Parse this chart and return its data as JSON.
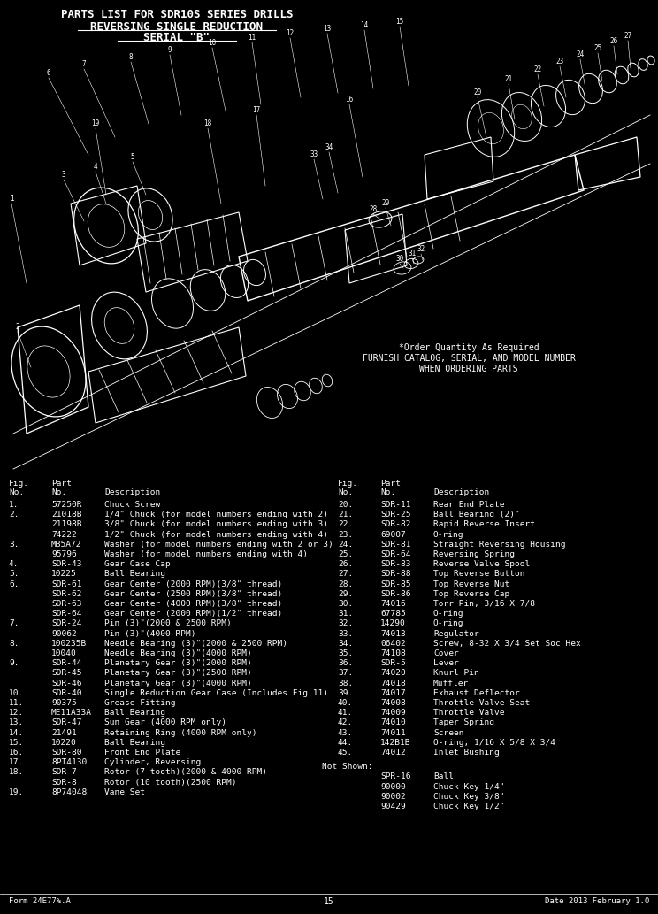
{
  "title_lines": [
    "PARTS LIST FOR SDR10S SERIES DRILLS",
    "REVERSING SINGLE REDUCTION",
    "SERIAL \"B\""
  ],
  "bg_color": "#000000",
  "text_color": "#ffffff",
  "note_lines": [
    "*Order Quantity As Required",
    "FURNISH CATALOG, SERIAL, AND MODEL NUMBER",
    "WHEN ORDERING PARTS"
  ],
  "col1_items": [
    [
      "1.",
      "57250R",
      "Chuck Screw"
    ],
    [
      "2.",
      "21018B",
      "1/4\" Chuck (for model numbers ending with 2)"
    ],
    [
      "",
      "21198B",
      "3/8\" Chuck (for model numbers ending with 3)"
    ],
    [
      "",
      "74222",
      "1/2\" Chuck (for model numbers ending with 4)"
    ],
    [
      "3.",
      "MB5A72",
      "Washer (for model numbers ending with 2 or 3)"
    ],
    [
      "",
      "95796",
      "Washer (for model numbers ending with 4)"
    ],
    [
      "4.",
      "SDR-43",
      "Gear Case Cap"
    ],
    [
      "5.",
      "10225",
      "Ball Bearing"
    ],
    [
      "6.",
      "SDR-61",
      "Gear Center (2000 RPM)(3/8\" thread)"
    ],
    [
      "",
      "SDR-62",
      "Gear Center (2500 RPM)(3/8\" thread)"
    ],
    [
      "",
      "SDR-63",
      "Gear Center (4000 RPM)(3/8\" thread)"
    ],
    [
      "",
      "SDR-64",
      "Gear Center (2000 RPM)(1/2\" thread)"
    ],
    [
      "7.",
      "SDR-24",
      "Pin (3)\"(2000 & 2500 RPM)"
    ],
    [
      "",
      "90062",
      "Pin (3)\"(4000 RPM)"
    ],
    [
      "8.",
      "100235B",
      "Needle Bearing (3)\"(2000 & 2500 RPM)"
    ],
    [
      "",
      "10040",
      "Needle Bearing (3)\"(4000 RPM)"
    ],
    [
      "9.",
      "SDR-44",
      "Planetary Gear (3)\"(2000 RPM)"
    ],
    [
      "",
      "SDR-45",
      "Planetary Gear (3)\"(2500 RPM)"
    ],
    [
      "",
      "SDR-46",
      "Planetary Gear (3)\"(4000 RPM)"
    ],
    [
      "10.",
      "SDR-40",
      "Single Reduction Gear Case (Includes Fig 11)"
    ],
    [
      "11.",
      "90375",
      "Grease Fitting"
    ],
    [
      "12.",
      "ME11A33A",
      "Ball Bearing"
    ],
    [
      "13.",
      "SDR-47",
      "Sun Gear (4000 RPM only)"
    ],
    [
      "14.",
      "21491",
      "Retaining Ring (4000 RPM only)"
    ],
    [
      "15.",
      "10220",
      "Ball Bearing"
    ],
    [
      "16.",
      "SDR-80",
      "Front End Plate"
    ],
    [
      "17.",
      "8PT4130",
      "Cylinder, Reversing"
    ],
    [
      "18.",
      "SDR-7",
      "Rotor (7 tooth)(2000 & 4000 RPM)"
    ],
    [
      "",
      "SDR-8",
      "Rotor (10 tooth)(2500 RPM)"
    ],
    [
      "19.",
      "8P74048",
      "Vane Set"
    ]
  ],
  "col2_items": [
    [
      "20.",
      "SDR-11",
      "Rear End Plate"
    ],
    [
      "21.",
      "SDR-25",
      "Ball Bearing (2)\""
    ],
    [
      "22.",
      "SDR-82",
      "Rapid Reverse Insert"
    ],
    [
      "23.",
      "69007",
      "O-ring"
    ],
    [
      "24.",
      "SDR-81",
      "Straight Reversing Housing"
    ],
    [
      "25.",
      "SDR-64",
      "Reversing Spring"
    ],
    [
      "26.",
      "SDR-83",
      "Reverse Valve Spool"
    ],
    [
      "27.",
      "SDR-88",
      "Top Reverse Button"
    ],
    [
      "28.",
      "SDR-85",
      "Top Reverse Nut"
    ],
    [
      "29.",
      "SDR-86",
      "Top Reverse Cap"
    ],
    [
      "30.",
      "74016",
      "Torr Pin, 3/16 X 7/8"
    ],
    [
      "31.",
      "67785",
      "O-ring"
    ],
    [
      "32.",
      "14290",
      "O-ring"
    ],
    [
      "33.",
      "74013",
      "Regulator"
    ],
    [
      "34.",
      "06402",
      "Screw, 8-32 X 3/4 Set Soc Hex"
    ],
    [
      "35.",
      "74108",
      "Cover"
    ],
    [
      "36.",
      "SDR-5",
      "Lever"
    ],
    [
      "37.",
      "74020",
      "Knurl Pin"
    ],
    [
      "38.",
      "74018",
      "Muffler"
    ],
    [
      "39.",
      "74017",
      "Exhaust Deflector"
    ],
    [
      "40.",
      "74008",
      "Throttle Valve Seat"
    ],
    [
      "41.",
      "74009",
      "Throttle Valve"
    ],
    [
      "42.",
      "74010",
      "Taper Spring"
    ],
    [
      "43.",
      "74011",
      "Screen"
    ],
    [
      "44.",
      "142B1B",
      "O-ring, 1/16 X 5/8 X 3/4"
    ],
    [
      "45.",
      "74012",
      "Inlet Bushing"
    ]
  ],
  "not_shown_items": [
    [
      "SPR-16",
      "Ball"
    ],
    [
      "90000",
      "Chuck Key 1/4\""
    ],
    [
      "90002",
      "Chuck Key 3/8\""
    ],
    [
      "90429",
      "Chuck Key 1/2\""
    ]
  ],
  "footer_left": "Form 24E77%.A",
  "footer_center": "15",
  "footer_right": "Date 2013 February 1.0"
}
